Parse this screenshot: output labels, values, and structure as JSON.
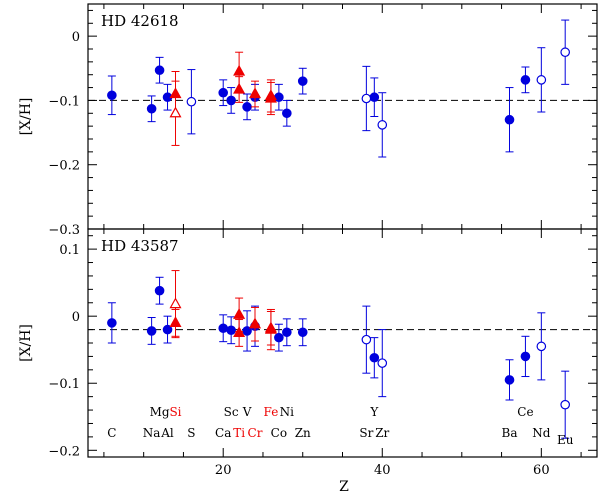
{
  "chart_data": [
    {
      "type": "scatter",
      "title": "HD 42618",
      "xlabel": "Z",
      "ylabel": "[X/H]",
      "xlim": [
        3,
        67
      ],
      "ylim": [
        -0.3,
        0.05
      ],
      "yticks": [
        0,
        -0.1,
        -0.2,
        -0.3
      ],
      "ytick_labels": [
        "0",
        "−0.1",
        "−0.2",
        "−0.3"
      ],
      "reference_line": -0.1,
      "series": [
        {
          "name": "neutral (filled circle)",
          "color": "#0000dd",
          "marker": "circle-filled",
          "points": [
            [
              6,
              -0.092,
              0.03
            ],
            [
              11,
              -0.113,
              0.02
            ],
            [
              12,
              -0.053,
              0.02
            ],
            [
              13,
              -0.095,
              0.02
            ],
            [
              20,
              -0.088,
              0.02
            ],
            [
              21,
              -0.1,
              0.02
            ],
            [
              23,
              -0.11,
              0.02
            ],
            [
              24,
              -0.095,
              0.02
            ],
            [
              27,
              -0.095,
              0.02
            ],
            [
              28,
              -0.12,
              0.02
            ],
            [
              30,
              -0.07,
              0.02
            ],
            [
              39,
              -0.095,
              0.03
            ],
            [
              56,
              -0.13,
              0.05
            ],
            [
              58,
              -0.068,
              0.02
            ]
          ]
        },
        {
          "name": "neutral (open circle)",
          "color": "#0000dd",
          "marker": "circle-open",
          "points": [
            [
              16,
              -0.102,
              0.05
            ],
            [
              38,
              -0.097,
              0.05
            ],
            [
              40,
              -0.138,
              0.05
            ],
            [
              60,
              -0.068,
              0.05
            ],
            [
              63,
              -0.025,
              0.05
            ]
          ]
        },
        {
          "name": "red (filled triangle)",
          "color": "#ee0000",
          "marker": "triangle-filled",
          "points": [
            [
              14,
              -0.09,
              0.035
            ],
            [
              22,
              -0.055,
              0.03
            ],
            [
              22,
              -0.083,
              0.02
            ],
            [
              24,
              -0.09,
              0.02
            ],
            [
              26,
              -0.097,
              0.025
            ],
            [
              26,
              -0.093,
              0.025
            ]
          ]
        },
        {
          "name": "red (open triangle)",
          "color": "#ee0000",
          "marker": "triangle-open",
          "points": [
            [
              14,
              -0.12,
              0.05
            ]
          ]
        }
      ]
    },
    {
      "type": "scatter",
      "title": "HD 43587",
      "xlabel": "Z",
      "ylabel": "[X/H]",
      "xlim": [
        3,
        67
      ],
      "ylim": [
        -0.21,
        0.13
      ],
      "yticks": [
        0.1,
        0,
        -0.1,
        -0.2
      ],
      "ytick_labels": [
        "0.1",
        "0",
        "−0.1",
        "−0.2"
      ],
      "xticks": [
        20,
        40,
        60
      ],
      "xtick_labels": [
        "20",
        "40",
        "60"
      ],
      "reference_line": -0.02,
      "series": [
        {
          "name": "neutral (filled circle)",
          "color": "#0000dd",
          "marker": "circle-filled",
          "points": [
            [
              6,
              -0.01,
              0.03
            ],
            [
              11,
              -0.022,
              0.02
            ],
            [
              12,
              0.038,
              0.02
            ],
            [
              13,
              -0.02,
              0.02
            ],
            [
              20,
              -0.018,
              0.02
            ],
            [
              21,
              -0.021,
              0.02
            ],
            [
              23,
              -0.022,
              0.03
            ],
            [
              24,
              -0.015,
              0.03
            ],
            [
              27,
              -0.032,
              0.02
            ],
            [
              28,
              -0.024,
              0.02
            ],
            [
              30,
              -0.024,
              0.02
            ],
            [
              39,
              -0.062,
              0.03
            ],
            [
              56,
              -0.095,
              0.03
            ],
            [
              58,
              -0.06,
              0.03
            ]
          ]
        },
        {
          "name": "neutral (open circle)",
          "color": "#0000dd",
          "marker": "circle-open",
          "points": [
            [
              38,
              -0.035,
              0.05
            ],
            [
              40,
              -0.07,
              0.05
            ],
            [
              60,
              -0.045,
              0.05
            ],
            [
              63,
              -0.132,
              0.05
            ]
          ]
        },
        {
          "name": "red (filled triangle)",
          "color": "#ee0000",
          "marker": "triangle-filled",
          "points": [
            [
              14,
              -0.01,
              0.02
            ],
            [
              22,
              0.002,
              0.025
            ],
            [
              22,
              -0.025,
              0.02
            ],
            [
              24,
              -0.012,
              0.025
            ],
            [
              26,
              -0.018,
              0.025
            ],
            [
              26,
              -0.02,
              0.03
            ]
          ]
        },
        {
          "name": "red (open triangle)",
          "color": "#ee0000",
          "marker": "triangle-open",
          "points": [
            [
              14,
              0.018,
              0.05
            ]
          ]
        }
      ]
    }
  ],
  "element_labels": [
    {
      "label": "C",
      "z": 6,
      "row": "lower",
      "color": "#000000"
    },
    {
      "label": "Na",
      "z": 11,
      "row": "lower",
      "color": "#000000"
    },
    {
      "label": "Mg",
      "z": 12,
      "row": "upper",
      "color": "#000000"
    },
    {
      "label": "Al",
      "z": 13,
      "row": "lower",
      "color": "#000000"
    },
    {
      "label": "Si",
      "z": 14,
      "row": "upper",
      "color": "#ee0000"
    },
    {
      "label": "S",
      "z": 16,
      "row": "lower",
      "color": "#000000"
    },
    {
      "label": "Ca",
      "z": 20,
      "row": "lower",
      "color": "#000000"
    },
    {
      "label": "Sc",
      "z": 21,
      "row": "upper",
      "color": "#000000"
    },
    {
      "label": "Ti",
      "z": 22,
      "row": "lower",
      "color": "#ee0000"
    },
    {
      "label": "V",
      "z": 23,
      "row": "upper",
      "color": "#000000"
    },
    {
      "label": "Cr",
      "z": 24,
      "row": "lower",
      "color": "#ee0000"
    },
    {
      "label": "Fe",
      "z": 26,
      "row": "upper",
      "color": "#ee0000"
    },
    {
      "label": "Co",
      "z": 27,
      "row": "lower",
      "color": "#000000"
    },
    {
      "label": "Ni",
      "z": 28,
      "row": "upper",
      "color": "#000000"
    },
    {
      "label": "Zn",
      "z": 30,
      "row": "lower",
      "color": "#000000"
    },
    {
      "label": "Sr",
      "z": 38,
      "row": "lower",
      "color": "#000000"
    },
    {
      "label": "Y",
      "z": 39,
      "row": "upper",
      "color": "#000000"
    },
    {
      "label": "Zr",
      "z": 40,
      "row": "lower",
      "color": "#000000"
    },
    {
      "label": "Ba",
      "z": 56,
      "row": "lower",
      "color": "#000000"
    },
    {
      "label": "Ce",
      "z": 58,
      "row": "upper",
      "color": "#000000"
    },
    {
      "label": "Nd",
      "z": 60,
      "row": "lower",
      "color": "#000000"
    },
    {
      "label": "Eu",
      "z": 63,
      "row": "lowest",
      "color": "#000000"
    }
  ]
}
